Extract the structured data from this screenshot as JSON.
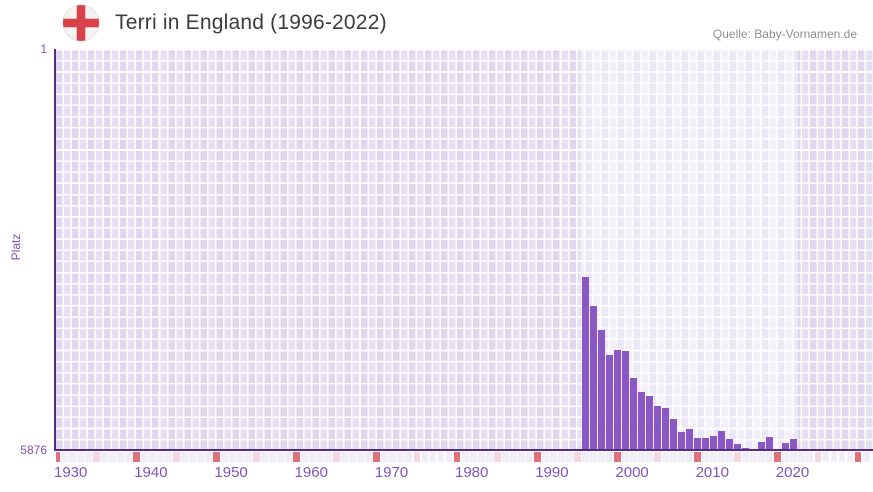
{
  "header": {
    "title": "Terri in England (1996-2022)",
    "flag_icon": "england-flag",
    "source": "Quelle: Baby-Vornamen.de"
  },
  "axes": {
    "y_label": "Platz",
    "y_top_tick": "1",
    "y_bottom_tick": "5876",
    "x_ticks": [
      1930,
      1940,
      1950,
      1960,
      1970,
      1980,
      1990,
      2000,
      2010,
      2020
    ]
  },
  "chart_data": {
    "type": "bar",
    "title": "Terri in England (1996-2022)",
    "xlabel": "",
    "ylabel": "Platz",
    "y_axis_inverted": true,
    "ylim": [
      1,
      5876
    ],
    "x_range_years": [
      1930,
      2031
    ],
    "highlight_range": [
      1996,
      2022
    ],
    "grid": true,
    "legend": false,
    "categories": [
      1996,
      1997,
      1998,
      1999,
      2000,
      2001,
      2002,
      2003,
      2004,
      2005,
      2006,
      2007,
      2008,
      2009,
      2010,
      2011,
      2012,
      2013,
      2014,
      2015,
      2016,
      2017,
      2018,
      2019,
      2020,
      2021,
      2022
    ],
    "values": [
      3336,
      3761,
      4122,
      4484,
      4411,
      4426,
      4826,
      5031,
      5081,
      5227,
      5257,
      5426,
      5617,
      5564,
      5705,
      5705,
      5667,
      5593,
      5715,
      5788,
      5851,
      null,
      5759,
      5690,
      null,
      5779,
      5715
    ]
  },
  "colors": {
    "bar": "#8b57c5",
    "axis": "#542c87",
    "tick_text": "#7e55b8",
    "plot_bg": "#e5dff1",
    "plot_bg_highlight": "#f3f0fa",
    "strip_cell": "#f0ecf8",
    "strip_decade": "#e0717b",
    "strip_half_decade": "#f3d6df",
    "flag_cross": "#d8404a",
    "flag_bg": "#f4f3f0",
    "title_text": "#3d3d3d",
    "source_text": "#8f8f8f"
  }
}
